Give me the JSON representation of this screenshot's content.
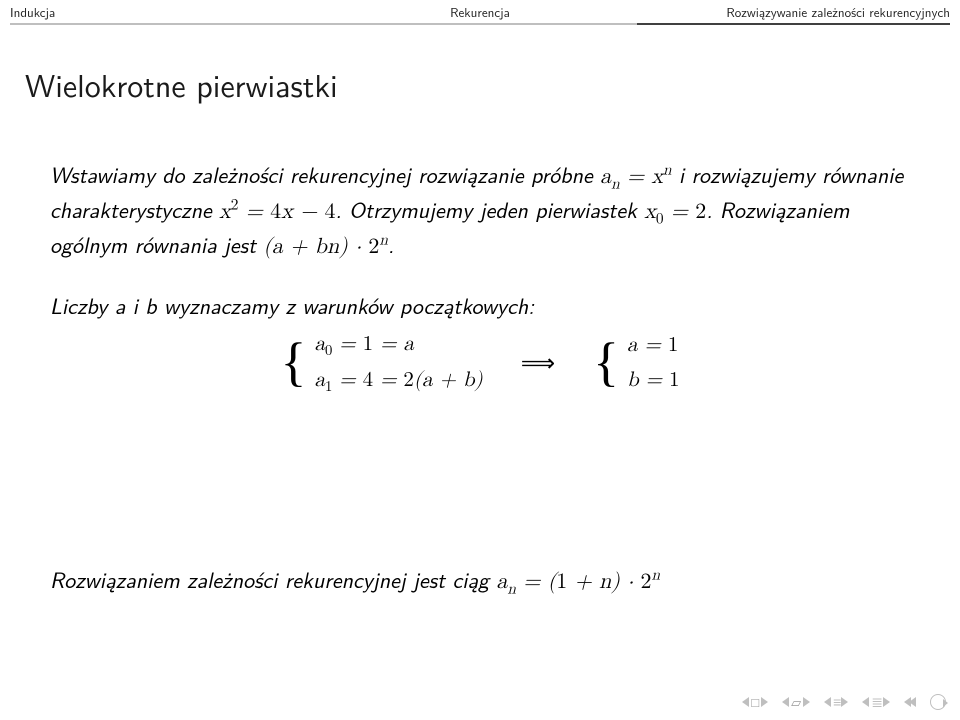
{
  "nav": {
    "left": {
      "label": "Indukcja",
      "current": false
    },
    "center": {
      "label": "Rekurencja",
      "current": false
    },
    "right": {
      "label": "Rozwiązywanie zależności rekurencyjnych",
      "current": true
    }
  },
  "title": "Wielokrotne pierwiastki",
  "body": {
    "para1_a": "Wstawiamy do zależności rekurencyjnej rozwiązanie próbne ",
    "para1_b": " i rozwiązujemy równanie charakterystyczne ",
    "para1_c": ". Otrzymujemy jeden pierwiastek ",
    "para1_d": ". Rozwiązaniem ogólnym równania jest ",
    "eq_trial": "aₙ = xⁿ",
    "eq_char": "x² = 4x − 4",
    "eq_root": "x₀ = 2",
    "eq_gen": "(a + bn) · 2ⁿ",
    "para2": "Liczby a i b wyznaczamy z warunków początkowych:",
    "system": {
      "l1": "a₀ = 1 = a",
      "l2": "a₁ = 4 = 2(a + b)",
      "implies": "⟹",
      "r1": "a = 1",
      "r2": "b = 1"
    },
    "final_a": "Rozwiązaniem zależności rekurencyjnej jest ciąg ",
    "final_eq": "aₙ = (1 + n) · 2ⁿ"
  },
  "footer_icons": {
    "group1": "frame-back-forward",
    "group2": "subsection-back-forward",
    "group3_left": "slide-back",
    "group3_right": "slide-forward",
    "group4": "appendix-back-forward",
    "last": "goto-end",
    "undo": "undo"
  },
  "colors": {
    "text": "#000000",
    "nav_inactive": "#bfbfbf",
    "nav_active": "#404040",
    "footer_icon": "#9a9a9a",
    "background": "#ffffff"
  },
  "fontsizes_pt": {
    "nav": 10,
    "title": 24,
    "body": 16
  }
}
